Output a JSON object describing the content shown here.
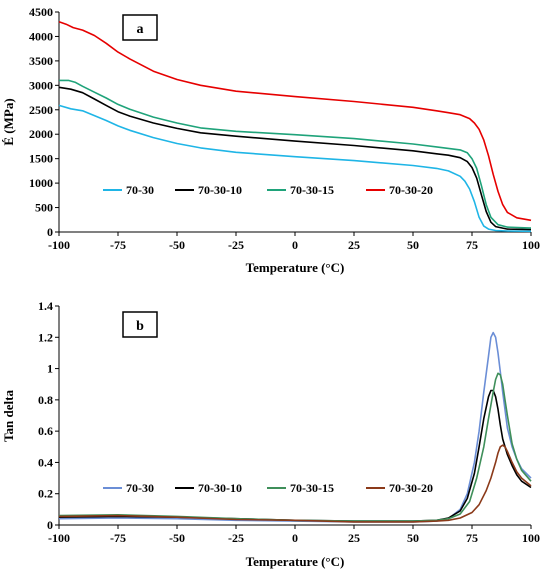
{
  "chart_data": [
    {
      "type": "line",
      "panel_label": "a",
      "xlabel": "Temperature (°C)",
      "ylabel": "É (MPa)",
      "xlim": [
        -100,
        100
      ],
      "ylim": [
        0,
        4500
      ],
      "xticks": [
        -100,
        -75,
        -50,
        -25,
        0,
        25,
        50,
        75,
        100
      ],
      "yticks": [
        0,
        500,
        1000,
        1500,
        2000,
        2500,
        3000,
        3500,
        4000,
        4500
      ],
      "grid": false,
      "legend_position": "bottom-left",
      "series": [
        {
          "name": "70-30",
          "color": "#1fb5e6",
          "x": [
            -100,
            -95,
            -90,
            -85,
            -80,
            -75,
            -70,
            -60,
            -50,
            -40,
            -25,
            0,
            25,
            50,
            60,
            65,
            70,
            72,
            74,
            76,
            78,
            80,
            82,
            85,
            90,
            100
          ],
          "y": [
            2590,
            2520,
            2480,
            2380,
            2280,
            2170,
            2080,
            1930,
            1810,
            1720,
            1630,
            1540,
            1460,
            1360,
            1300,
            1250,
            1140,
            1040,
            880,
            620,
            300,
            120,
            60,
            30,
            20,
            15
          ]
        },
        {
          "name": "70-30-10",
          "color": "#000000",
          "x": [
            -100,
            -95,
            -90,
            -85,
            -80,
            -75,
            -70,
            -60,
            -50,
            -40,
            -25,
            0,
            25,
            50,
            60,
            65,
            70,
            73,
            75,
            77,
            79,
            81,
            83,
            85,
            90,
            100
          ],
          "y": [
            2960,
            2920,
            2850,
            2720,
            2590,
            2460,
            2370,
            2230,
            2120,
            2030,
            1960,
            1860,
            1770,
            1660,
            1600,
            1570,
            1520,
            1440,
            1320,
            1100,
            760,
            420,
            200,
            110,
            60,
            50
          ]
        },
        {
          "name": "70-30-15",
          "color": "#1fa37a",
          "x": [
            -100,
            -96,
            -93,
            -90,
            -85,
            -80,
            -75,
            -70,
            -60,
            -50,
            -40,
            -25,
            0,
            25,
            50,
            60,
            65,
            70,
            73,
            75,
            77,
            79,
            81,
            83,
            86,
            90,
            100
          ],
          "y": [
            3100,
            3100,
            3060,
            2980,
            2860,
            2740,
            2610,
            2510,
            2350,
            2230,
            2130,
            2060,
            1990,
            1910,
            1800,
            1740,
            1710,
            1680,
            1620,
            1500,
            1300,
            950,
            560,
            300,
            150,
            100,
            80
          ]
        },
        {
          "name": "70-30-20",
          "color": "#e60000",
          "x": [
            -100,
            -97,
            -94,
            -90,
            -85,
            -80,
            -75,
            -70,
            -60,
            -50,
            -40,
            -25,
            0,
            25,
            50,
            60,
            65,
            70,
            74,
            76,
            78,
            80,
            82,
            84,
            86,
            88,
            90,
            94,
            100
          ],
          "y": [
            4300,
            4250,
            4180,
            4130,
            4020,
            3860,
            3680,
            3540,
            3290,
            3120,
            3000,
            2880,
            2770,
            2670,
            2550,
            2480,
            2440,
            2400,
            2320,
            2230,
            2100,
            1880,
            1560,
            1180,
            830,
            560,
            400,
            290,
            240
          ]
        }
      ]
    },
    {
      "type": "line",
      "panel_label": "b",
      "xlabel": "Temperature (°C)",
      "ylabel": "Tan delta",
      "xlim": [
        -100,
        100
      ],
      "ylim": [
        0,
        1.4
      ],
      "xticks": [
        -100,
        -75,
        -50,
        -25,
        0,
        25,
        50,
        75,
        100
      ],
      "yticks": [
        0,
        0.2,
        0.4,
        0.6,
        0.8,
        1,
        1.2,
        1.4
      ],
      "grid": false,
      "legend_position": "bottom-left",
      "series": [
        {
          "name": "70-30",
          "color": "#6b8ed6",
          "x": [
            -100,
            -75,
            -50,
            -25,
            0,
            25,
            50,
            60,
            65,
            70,
            73,
            76,
            78,
            80,
            82,
            83,
            84,
            85,
            86,
            87,
            88,
            90,
            92,
            94,
            96,
            100
          ],
          "y": [
            0.04,
            0.045,
            0.04,
            0.03,
            0.025,
            0.02,
            0.02,
            0.025,
            0.04,
            0.1,
            0.2,
            0.4,
            0.6,
            0.85,
            1.08,
            1.2,
            1.23,
            1.2,
            1.1,
            0.98,
            0.85,
            0.62,
            0.5,
            0.42,
            0.36,
            0.3
          ]
        },
        {
          "name": "70-30-10",
          "color": "#000000",
          "x": [
            -100,
            -75,
            -50,
            -25,
            0,
            25,
            50,
            60,
            65,
            70,
            73,
            76,
            78,
            80,
            82,
            83,
            84,
            85,
            86,
            87,
            88,
            90,
            92,
            94,
            96,
            100
          ],
          "y": [
            0.05,
            0.055,
            0.05,
            0.04,
            0.03,
            0.025,
            0.025,
            0.03,
            0.045,
            0.09,
            0.17,
            0.33,
            0.5,
            0.68,
            0.82,
            0.86,
            0.86,
            0.82,
            0.74,
            0.64,
            0.55,
            0.45,
            0.38,
            0.32,
            0.28,
            0.24
          ]
        },
        {
          "name": "70-30-15",
          "color": "#3f8f5a",
          "x": [
            -100,
            -75,
            -50,
            -25,
            0,
            25,
            50,
            60,
            65,
            70,
            74,
            77,
            80,
            82,
            84,
            85,
            86,
            87,
            88,
            89,
            90,
            92,
            94,
            96,
            100
          ],
          "y": [
            0.06,
            0.065,
            0.055,
            0.04,
            0.03,
            0.025,
            0.025,
            0.03,
            0.04,
            0.07,
            0.15,
            0.3,
            0.5,
            0.68,
            0.85,
            0.93,
            0.97,
            0.96,
            0.9,
            0.8,
            0.7,
            0.52,
            0.42,
            0.35,
            0.28
          ]
        },
        {
          "name": "70-30-20",
          "color": "#8b3a1a",
          "x": [
            -100,
            -75,
            -50,
            -25,
            0,
            25,
            50,
            60,
            65,
            70,
            75,
            78,
            81,
            83,
            85,
            86,
            87,
            88,
            89,
            90,
            92,
            94,
            96,
            100
          ],
          "y": [
            0.055,
            0.06,
            0.05,
            0.035,
            0.03,
            0.02,
            0.02,
            0.025,
            0.03,
            0.045,
            0.08,
            0.13,
            0.22,
            0.3,
            0.4,
            0.46,
            0.5,
            0.51,
            0.5,
            0.47,
            0.4,
            0.34,
            0.3,
            0.25
          ]
        }
      ]
    }
  ]
}
